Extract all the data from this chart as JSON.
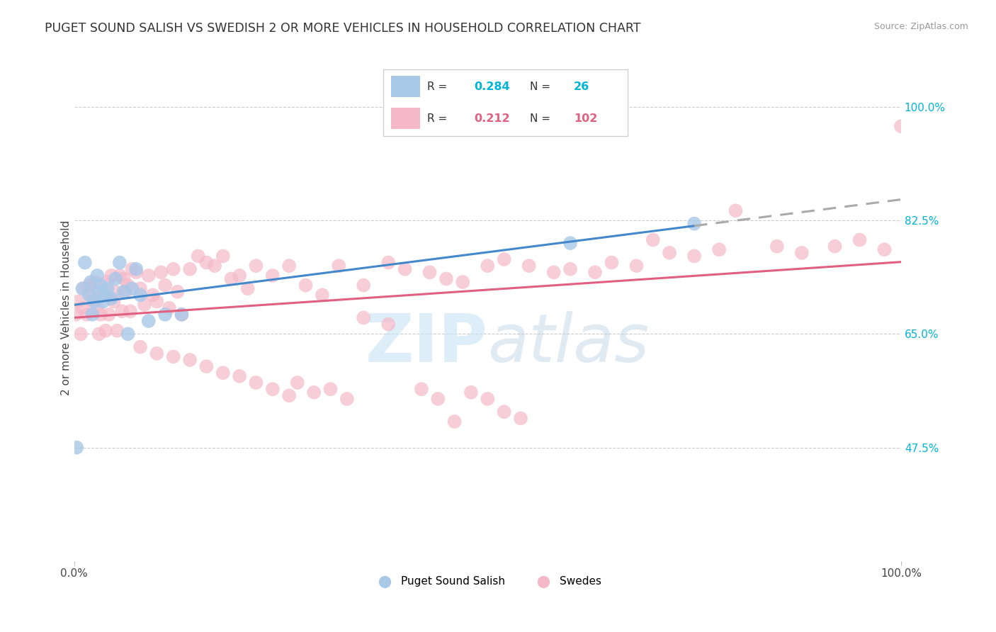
{
  "title": "PUGET SOUND SALISH VS SWEDISH 2 OR MORE VEHICLES IN HOUSEHOLD CORRELATION CHART",
  "source": "Source: ZipAtlas.com",
  "ylabel": "2 or more Vehicles in Household",
  "xmin": 0.0,
  "xmax": 100.0,
  "ymin": 30.0,
  "ymax": 108.0,
  "yticks": [
    47.5,
    65.0,
    82.5,
    100.0
  ],
  "ytick_labels": [
    "47.5%",
    "65.0%",
    "82.5%",
    "100.0%"
  ],
  "blue_R": 0.284,
  "blue_N": 26,
  "pink_R": 0.212,
  "pink_N": 102,
  "blue_color": "#a8c8e8",
  "pink_color": "#f5b8c8",
  "blue_line_color": "#4488cc",
  "pink_line_color": "#e06080",
  "dashed_line_color": "#aaaaaa",
  "legend_label_blue": "Puget Sound Salish",
  "legend_label_pink": "Swedes",
  "watermark": "ZIPatlas",
  "watermark_color": "#dbeef8",
  "blue_x": [
    0.3,
    1.0,
    1.3,
    1.8,
    2.0,
    2.2,
    2.5,
    2.8,
    3.0,
    3.2,
    3.5,
    3.8,
    4.0,
    4.5,
    5.0,
    5.5,
    6.0,
    6.5,
    7.0,
    7.5,
    8.0,
    9.0,
    11.0,
    13.0,
    60.0,
    75.0
  ],
  "blue_y": [
    47.5,
    72.0,
    76.0,
    71.0,
    73.0,
    68.0,
    70.0,
    74.0,
    71.5,
    72.5,
    70.0,
    71.0,
    72.0,
    70.5,
    73.5,
    76.0,
    71.5,
    65.0,
    72.0,
    75.0,
    71.0,
    67.0,
    68.0,
    68.0,
    79.0,
    82.0
  ],
  "pink_x": [
    0.2,
    0.5,
    0.8,
    1.0,
    1.2,
    1.5,
    1.8,
    2.0,
    2.2,
    2.5,
    2.8,
    3.0,
    3.2,
    3.5,
    3.8,
    4.0,
    4.2,
    4.5,
    4.8,
    5.0,
    5.2,
    5.5,
    5.8,
    6.0,
    6.2,
    6.5,
    6.8,
    7.0,
    7.5,
    8.0,
    8.5,
    9.0,
    9.5,
    10.0,
    10.5,
    11.0,
    11.5,
    12.0,
    12.5,
    13.0,
    14.0,
    15.0,
    16.0,
    17.0,
    18.0,
    19.0,
    20.0,
    21.0,
    22.0,
    24.0,
    26.0,
    28.0,
    30.0,
    32.0,
    35.0,
    38.0,
    40.0,
    43.0,
    45.0,
    47.0,
    50.0,
    52.0,
    55.0,
    58.0,
    60.0,
    63.0,
    65.0,
    68.0,
    70.0,
    72.0,
    75.0,
    78.0,
    80.0,
    85.0,
    88.0,
    92.0,
    95.0,
    98.0,
    100.0,
    35.0,
    38.0,
    42.0,
    44.0,
    46.0,
    48.0,
    50.0,
    52.0,
    54.0,
    27.0,
    29.0,
    31.0,
    33.0,
    8.0,
    10.0,
    12.0,
    14.0,
    16.0,
    18.0,
    20.0,
    22.0,
    24.0,
    26.0
  ],
  "pink_y": [
    68.0,
    70.0,
    65.0,
    69.0,
    72.0,
    68.0,
    72.5,
    71.0,
    70.0,
    73.0,
    69.0,
    65.0,
    68.0,
    71.0,
    65.5,
    73.0,
    68.0,
    74.0,
    70.0,
    71.5,
    65.5,
    74.0,
    68.5,
    73.5,
    71.5,
    72.5,
    68.5,
    75.0,
    74.5,
    72.0,
    69.5,
    74.0,
    71.0,
    70.0,
    74.5,
    72.5,
    69.0,
    75.0,
    71.5,
    68.0,
    75.0,
    77.0,
    76.0,
    75.5,
    77.0,
    73.5,
    74.0,
    72.0,
    75.5,
    74.0,
    75.5,
    72.5,
    71.0,
    75.5,
    72.5,
    76.0,
    75.0,
    74.5,
    73.5,
    73.0,
    75.5,
    76.5,
    75.5,
    74.5,
    75.0,
    74.5,
    76.0,
    75.5,
    79.5,
    77.5,
    77.0,
    78.0,
    84.0,
    78.5,
    77.5,
    78.5,
    79.5,
    78.0,
    97.0,
    67.5,
    66.5,
    56.5,
    55.0,
    51.5,
    56.0,
    55.0,
    53.0,
    52.0,
    57.5,
    56.0,
    56.5,
    55.0,
    63.0,
    62.0,
    61.5,
    61.0,
    60.0,
    59.0,
    58.5,
    57.5,
    56.5,
    55.5
  ]
}
